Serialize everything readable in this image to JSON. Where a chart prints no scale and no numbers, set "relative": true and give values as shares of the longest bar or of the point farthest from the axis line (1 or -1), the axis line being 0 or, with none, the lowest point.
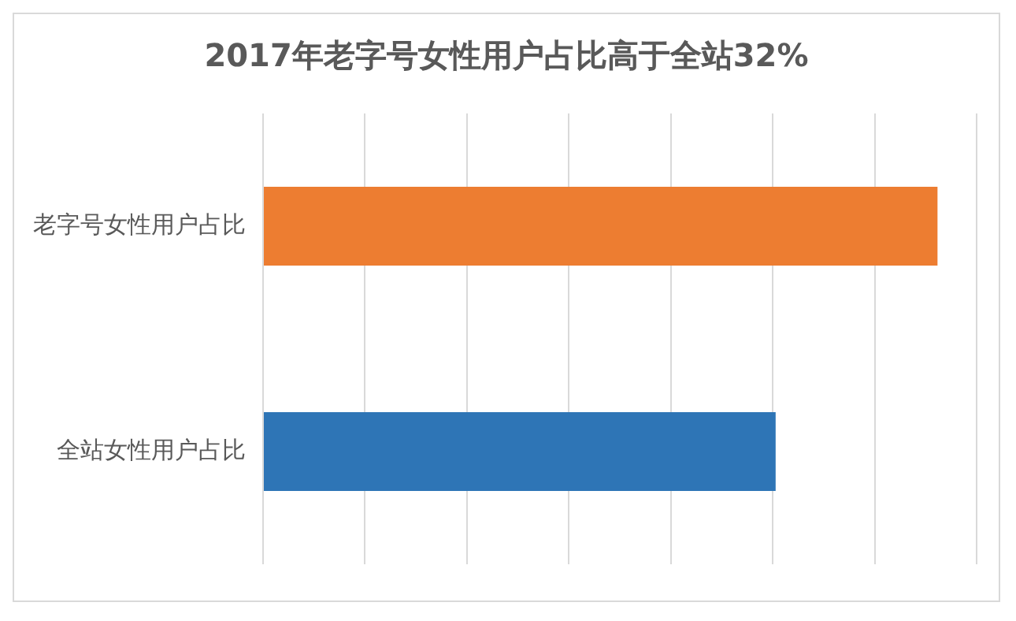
{
  "chart_data": {
    "type": "bar",
    "orientation": "horizontal",
    "relative": true,
    "title": "2017年老字号女性用户占比高于全站32%",
    "categories": [
      "老字号女性用户占比",
      "全站女性用户占比"
    ],
    "values": [
      1,
      0.76
    ],
    "colors": [
      "#ed7d31",
      "#2e75b6"
    ],
    "grid": "x",
    "legend": false
  }
}
